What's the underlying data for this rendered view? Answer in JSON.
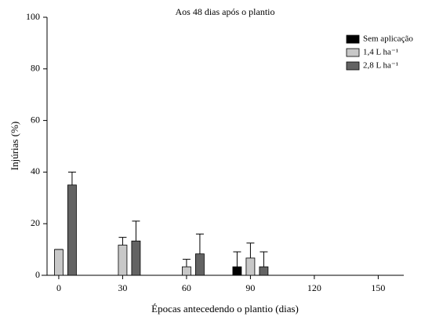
{
  "chart_data": {
    "type": "bar",
    "title": "Aos 48 dias após o plantio",
    "x_label": "Épocas antecedendo o plantio (dias)",
    "y_label": "Injúrias (%)",
    "x": [
      0,
      30,
      60,
      90,
      120,
      150
    ],
    "series": [
      {
        "name": "Sem aplicação",
        "color": "#000000",
        "values": [
          0,
          0,
          0,
          3.3,
          0,
          0
        ],
        "errors": [
          0,
          0,
          0,
          5.8,
          0,
          0
        ]
      },
      {
        "name": "1,4 L ha⁻¹",
        "color": "#c8c8c8",
        "values": [
          10,
          11.7,
          3.3,
          6.7,
          0,
          0
        ],
        "errors": [
          0,
          3,
          2.9,
          5.8,
          0,
          0
        ]
      },
      {
        "name": "2,8 L ha⁻¹",
        "color": "#636363",
        "values": [
          35,
          13.3,
          8.3,
          3.3,
          0,
          0
        ],
        "errors": [
          5,
          7.7,
          7.7,
          5.8,
          0,
          0
        ]
      }
    ],
    "xlim": [
      -5.5,
      162
    ],
    "xticks": [
      0,
      30,
      60,
      90,
      120,
      150
    ],
    "ylim": [
      0,
      100
    ],
    "yticks": [
      0,
      20,
      40,
      60,
      80,
      100
    ],
    "grid": false,
    "legend": "upper right"
  }
}
